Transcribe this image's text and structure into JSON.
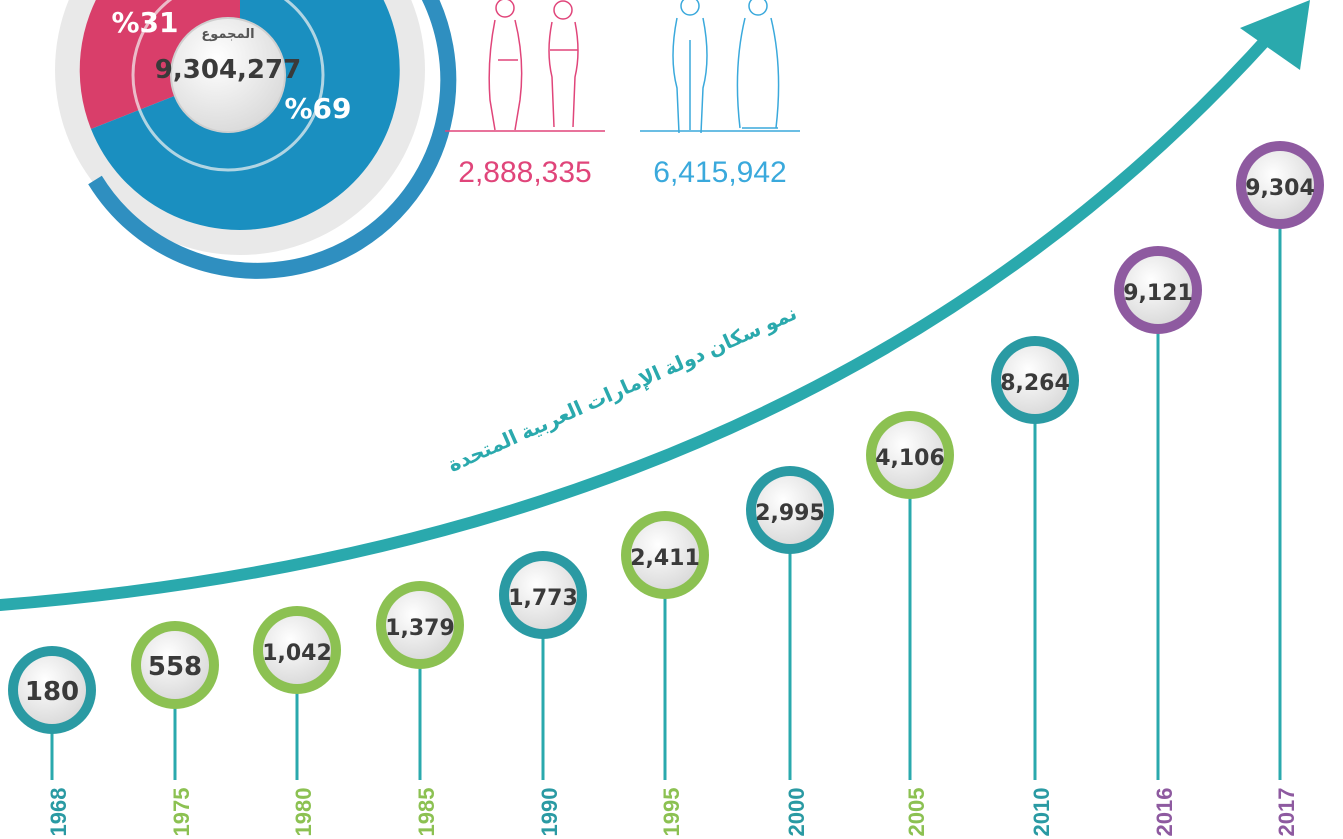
{
  "pie": {
    "total_label": "المجموع",
    "total": "9,304,277",
    "female_share": "%31",
    "male_share": "%69"
  },
  "people": {
    "female_count": "2,888,335",
    "male_count": "6,415,942"
  },
  "growth_title": "نمو سكان دولة الإمارات العربية المتحدة",
  "timeline": {
    "items": [
      {
        "year": "1968",
        "value": "180",
        "ring": "#2a9aa3"
      },
      {
        "year": "1975",
        "value": "558",
        "ring": "#8cc152"
      },
      {
        "year": "1980",
        "value": "1,042",
        "ring": "#8cc152"
      },
      {
        "year": "1985",
        "value": "1,379",
        "ring": "#8cc152"
      },
      {
        "year": "1990",
        "value": "1,773",
        "ring": "#2a9aa3"
      },
      {
        "year": "1995",
        "value": "2,411",
        "ring": "#8cc152"
      },
      {
        "year": "2000",
        "value": "2,995",
        "ring": "#2a9aa3"
      },
      {
        "year": "2005",
        "value": "4,106",
        "ring": "#8cc152"
      },
      {
        "year": "2010",
        "value": "8,264",
        "ring": "#2a9aa3"
      },
      {
        "year": "2016",
        "value": "9,121",
        "ring": "#8e5aa0"
      },
      {
        "year": "2017",
        "value": "9,304",
        "ring": "#8e5aa0"
      }
    ]
  }
}
